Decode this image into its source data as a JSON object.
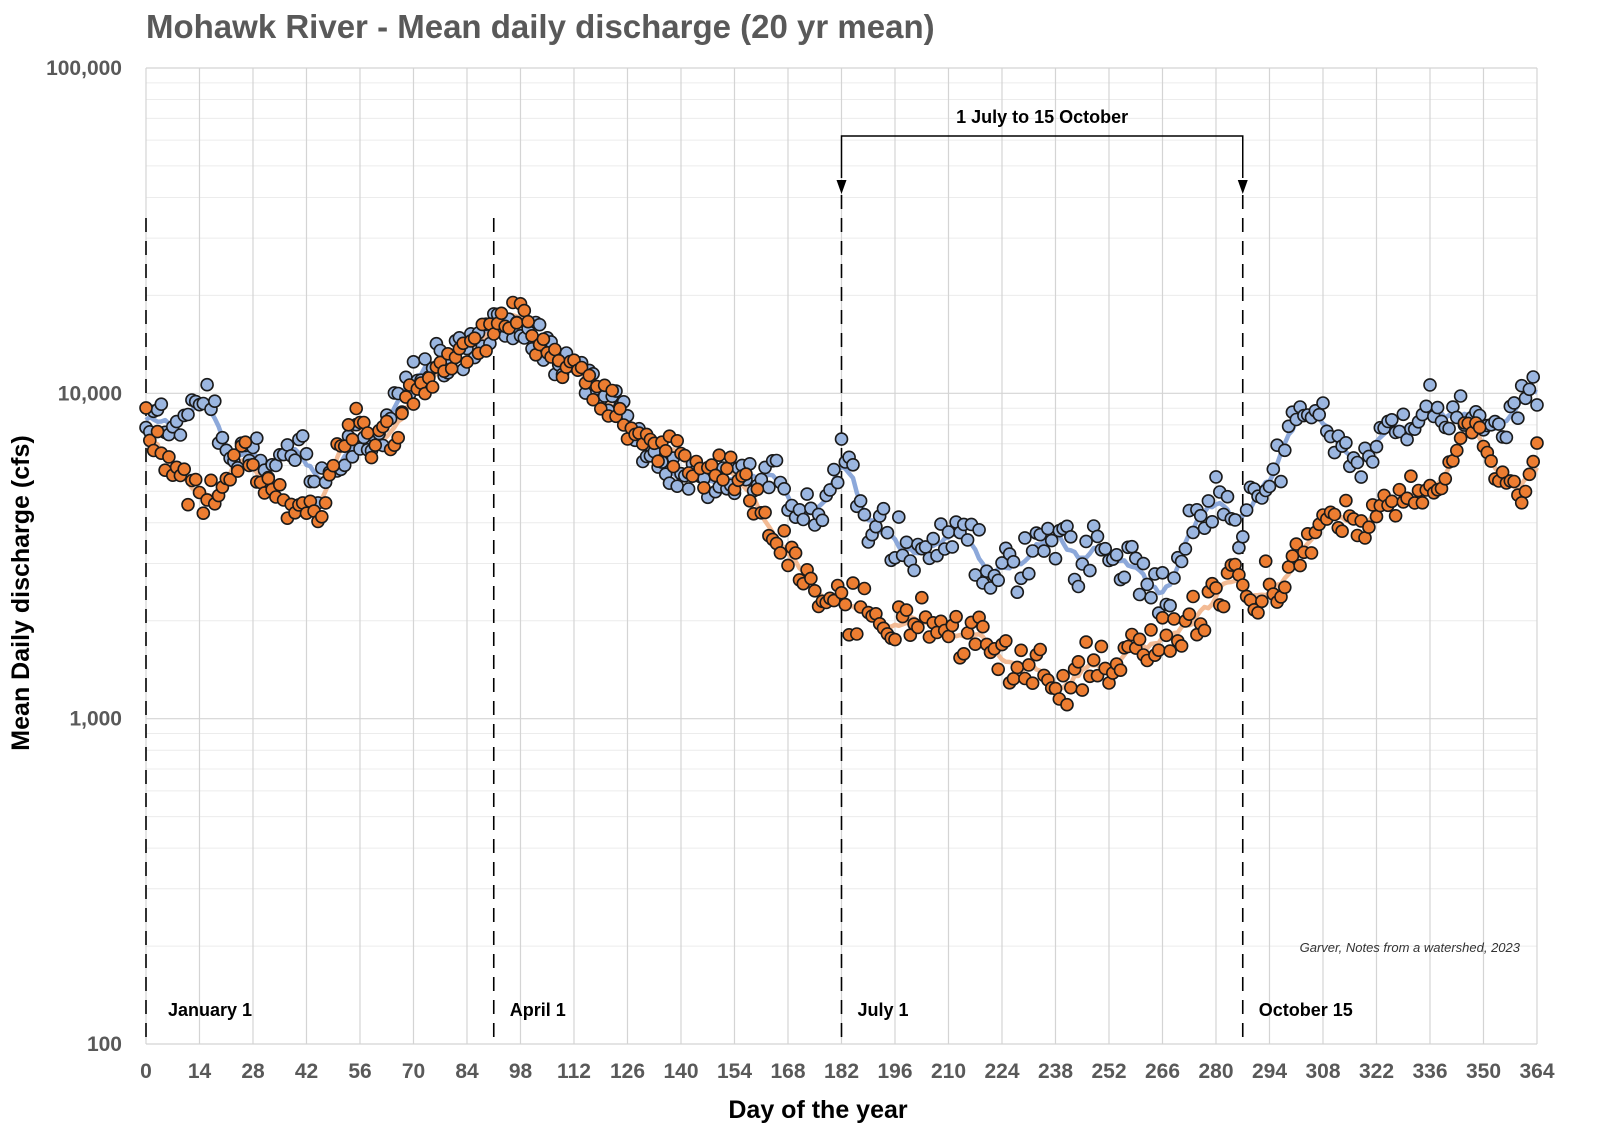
{
  "chart_data": {
    "type": "scatter",
    "title": "Mohawk River - Mean daily discharge (20 yr mean)",
    "xlabel": "Day of the year",
    "ylabel": "Mean Daily discharge (cfs)",
    "yscale": "log",
    "xlim": [
      0,
      364
    ],
    "ylim": [
      100,
      100000
    ],
    "x_ticks": [
      0,
      14,
      28,
      42,
      56,
      70,
      84,
      98,
      112,
      126,
      140,
      154,
      168,
      182,
      196,
      210,
      224,
      238,
      252,
      266,
      280,
      294,
      308,
      322,
      336,
      350,
      364
    ],
    "y_ticks": [
      {
        "value": 100,
        "label": "100"
      },
      {
        "value": 1000,
        "label": "1,000"
      },
      {
        "value": 10000,
        "label": "10,000"
      },
      {
        "value": 100000,
        "label": "100,000"
      }
    ],
    "grid": true,
    "legend": "none",
    "markers": [
      {
        "day": 0,
        "label": "January 1"
      },
      {
        "day": 91,
        "label": "April 1"
      },
      {
        "day": 182,
        "label": "July 1"
      },
      {
        "day": 287,
        "label": "October 15"
      }
    ],
    "bracket": {
      "start_day": 182,
      "end_day": 287,
      "label": "1 July to 15 October"
    },
    "credit": "Garver, Notes from a watershed, 2023",
    "colors": {
      "blue_series": "#9bb6e0",
      "orange_series": "#ed7d31",
      "blue_line": "#7f9fd6",
      "orange_line": "#f2b48a",
      "marker_edge": "#1a1a1a"
    },
    "series": [
      {
        "color": "blue",
        "style": "points",
        "anchors": [
          [
            0,
            8500
          ],
          [
            7,
            8000
          ],
          [
            11,
            8200
          ],
          [
            15,
            10500
          ],
          [
            18,
            8500
          ],
          [
            22,
            6000
          ],
          [
            27,
            7000
          ],
          [
            31,
            6000
          ],
          [
            35,
            6000
          ],
          [
            40,
            7000
          ],
          [
            45,
            5200
          ],
          [
            50,
            6200
          ],
          [
            55,
            7500
          ],
          [
            62,
            7500
          ],
          [
            68,
            10500
          ],
          [
            74,
            12500
          ],
          [
            80,
            12800
          ],
          [
            86,
            14000
          ],
          [
            92,
            17000
          ],
          [
            98,
            16500
          ],
          [
            104,
            14000
          ],
          [
            110,
            12000
          ],
          [
            116,
            10500
          ],
          [
            122,
            9500
          ],
          [
            128,
            7500
          ],
          [
            134,
            6000
          ],
          [
            140,
            5800
          ],
          [
            146,
            5400
          ],
          [
            152,
            5400
          ],
          [
            158,
            5500
          ],
          [
            164,
            5800
          ],
          [
            170,
            4500
          ],
          [
            176,
            4300
          ],
          [
            180,
            5500
          ],
          [
            183,
            7000
          ],
          [
            186,
            5000
          ],
          [
            190,
            3800
          ],
          [
            196,
            3600
          ],
          [
            202,
            3200
          ],
          [
            208,
            3300
          ],
          [
            214,
            3400
          ],
          [
            220,
            3100
          ],
          [
            226,
            2700
          ],
          [
            232,
            3100
          ],
          [
            238,
            3600
          ],
          [
            244,
            3000
          ],
          [
            250,
            3700
          ],
          [
            256,
            3100
          ],
          [
            262,
            2500
          ],
          [
            268,
            2600
          ],
          [
            274,
            4000
          ],
          [
            280,
            4800
          ],
          [
            286,
            3600
          ],
          [
            290,
            4800
          ],
          [
            296,
            6000
          ],
          [
            302,
            9500
          ],
          [
            306,
            9000
          ],
          [
            312,
            7000
          ],
          [
            318,
            6000
          ],
          [
            324,
            8000
          ],
          [
            330,
            8000
          ],
          [
            336,
            9500
          ],
          [
            342,
            8500
          ],
          [
            348,
            9000
          ],
          [
            354,
            7500
          ],
          [
            358,
            8500
          ],
          [
            362,
            11000
          ],
          [
            364,
            10200
          ]
        ]
      },
      {
        "color": "orange",
        "style": "points",
        "anchors": [
          [
            0,
            8000
          ],
          [
            5,
            6500
          ],
          [
            10,
            5200
          ],
          [
            15,
            4800
          ],
          [
            20,
            5200
          ],
          [
            25,
            6500
          ],
          [
            30,
            5300
          ],
          [
            35,
            4800
          ],
          [
            40,
            4500
          ],
          [
            45,
            4200
          ],
          [
            50,
            6500
          ],
          [
            55,
            8000
          ],
          [
            60,
            7000
          ],
          [
            66,
            7800
          ],
          [
            70,
            10000
          ],
          [
            76,
            12000
          ],
          [
            82,
            13500
          ],
          [
            88,
            14500
          ],
          [
            94,
            16500
          ],
          [
            98,
            17500
          ],
          [
            104,
            13500
          ],
          [
            110,
            12000
          ],
          [
            116,
            11000
          ],
          [
            122,
            9000
          ],
          [
            128,
            7500
          ],
          [
            134,
            7000
          ],
          [
            140,
            6500
          ],
          [
            146,
            5800
          ],
          [
            152,
            5800
          ],
          [
            158,
            5000
          ],
          [
            164,
            3800
          ],
          [
            170,
            3000
          ],
          [
            176,
            2400
          ],
          [
            182,
            2200
          ],
          [
            188,
            2100
          ],
          [
            194,
            2000
          ],
          [
            200,
            2000
          ],
          [
            206,
            1950
          ],
          [
            212,
            1800
          ],
          [
            218,
            1700
          ],
          [
            224,
            1500
          ],
          [
            230,
            1450
          ],
          [
            236,
            1350
          ],
          [
            242,
            1300
          ],
          [
            248,
            1600
          ],
          [
            254,
            1400
          ],
          [
            260,
            1700
          ],
          [
            266,
            1900
          ],
          [
            272,
            2000
          ],
          [
            278,
            2300
          ],
          [
            284,
            2500
          ],
          [
            290,
            2500
          ],
          [
            296,
            2600
          ],
          [
            302,
            3300
          ],
          [
            308,
            3800
          ],
          [
            314,
            4200
          ],
          [
            320,
            4000
          ],
          [
            326,
            4500
          ],
          [
            332,
            5000
          ],
          [
            338,
            5000
          ],
          [
            344,
            7500
          ],
          [
            350,
            7000
          ],
          [
            354,
            5500
          ],
          [
            360,
            5000
          ],
          [
            364,
            6500
          ]
        ]
      }
    ]
  }
}
